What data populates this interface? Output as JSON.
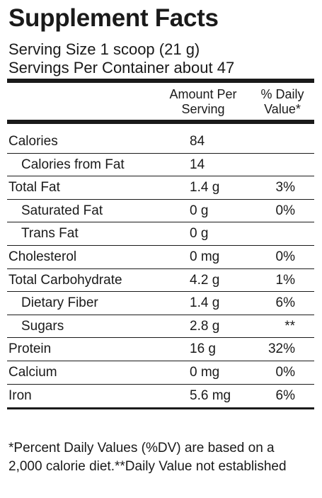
{
  "label": {
    "title": "Supplement Facts",
    "serving_size": "Serving Size 1 scoop (21 g)",
    "servings_per_container": "Servings Per Container about 47",
    "header": {
      "amount": "Amount Per\nServing",
      "daily_value": "% Daily\nValue*"
    },
    "rows": [
      {
        "name": "Calories",
        "amount": "84",
        "dv": ""
      },
      {
        "name": "Calories from Fat",
        "amount": "14",
        "dv": ""
      },
      {
        "name": "Total Fat",
        "amount": "1.4 g",
        "dv": "3%"
      },
      {
        "name": "Saturated Fat",
        "amount": "0 g",
        "dv": "0%"
      },
      {
        "name": "Trans Fat",
        "amount": "0 g",
        "dv": ""
      },
      {
        "name": "Cholesterol",
        "amount": "0 mg",
        "dv": "0%"
      },
      {
        "name": "Total Carbohydrate",
        "amount": "4.2 g",
        "dv": "1%"
      },
      {
        "name": "Dietary Fiber",
        "amount": "1.4 g",
        "dv": "6%"
      },
      {
        "name": "Sugars",
        "amount": "2.8 g",
        "dv": "**"
      },
      {
        "name": "Protein",
        "amount": "16 g",
        "dv": "32%"
      },
      {
        "name": "Calcium",
        "amount": "0 mg",
        "dv": "0%"
      },
      {
        "name": "Iron",
        "amount": "5.6 mg",
        "dv": "6%"
      }
    ],
    "footnote_line1": "*Percent Daily Values (%DV) are based on a",
    "footnote_line2": "2,000 calorie diet.**Daily Value not established"
  }
}
